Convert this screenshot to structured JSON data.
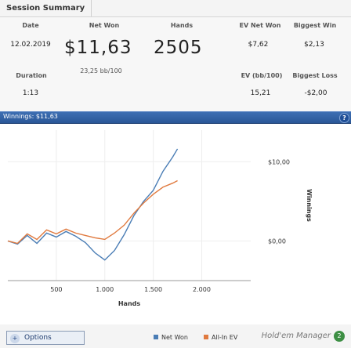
{
  "tab": {
    "label": "Session Summary"
  },
  "stats": {
    "date": {
      "label": "Date",
      "value": "12.02.2019"
    },
    "net_won": {
      "label": "Net Won",
      "value": "$11,63"
    },
    "hands": {
      "label": "Hands",
      "value": "2505"
    },
    "ev_net_won": {
      "label": "EV Net Won",
      "value": "$7,62"
    },
    "biggest_win": {
      "label": "Biggest Win",
      "value": "$2,13"
    },
    "duration": {
      "label": "Duration",
      "value": "1:13"
    },
    "bb_100": {
      "value": "23,25 bb/100"
    },
    "ev_bb_100": {
      "label": "EV (bb/100)",
      "value": "15,21"
    },
    "biggest_loss": {
      "label": "Biggest Loss",
      "value": "-$2,00"
    }
  },
  "chart_bar": {
    "winnings": "Winnings: $11,63",
    "help": "?"
  },
  "chart_data": {
    "type": "line",
    "xlabel": "Hands",
    "ylabel": "Winnings",
    "x_ticks": [
      "500",
      "1.000",
      "1.500",
      "2.000"
    ],
    "y_ticks": [
      "$10,00",
      "$0,00"
    ],
    "xlim": [
      0,
      2505
    ],
    "ylim": [
      -5,
      14
    ],
    "series": [
      {
        "name": "Net Won",
        "color": "#4a7db5",
        "x": [
          0,
          100,
          200,
          300,
          400,
          500,
          600,
          700,
          800,
          900,
          1000,
          1100,
          1200,
          1300,
          1400,
          1500,
          1600,
          1700,
          1750
        ],
        "y": [
          0,
          -0.4,
          0.7,
          -0.3,
          1.0,
          0.5,
          1.2,
          0.6,
          -0.2,
          -1.5,
          -2.4,
          -1.2,
          0.8,
          3.2,
          5.0,
          6.4,
          8.8,
          10.6,
          11.63
        ]
      },
      {
        "name": "All-In EV",
        "color": "#e07a3f",
        "x": [
          0,
          100,
          200,
          300,
          400,
          500,
          600,
          700,
          800,
          900,
          1000,
          1100,
          1200,
          1300,
          1400,
          1500,
          1600,
          1700,
          1750
        ],
        "y": [
          0,
          -0.3,
          0.9,
          0.2,
          1.4,
          0.9,
          1.5,
          1.0,
          0.7,
          0.4,
          0.2,
          1.0,
          2.0,
          3.5,
          4.8,
          5.9,
          6.8,
          7.3,
          7.62
        ]
      }
    ]
  },
  "footer": {
    "options_label": "Options",
    "options_symbol": "+",
    "legend": [
      {
        "label": "Net Won",
        "color": "#4a7db5"
      },
      {
        "label": "All-In EV",
        "color": "#e07a3f"
      }
    ],
    "brand": "Hold'em Manager",
    "brand_logo": "2"
  }
}
